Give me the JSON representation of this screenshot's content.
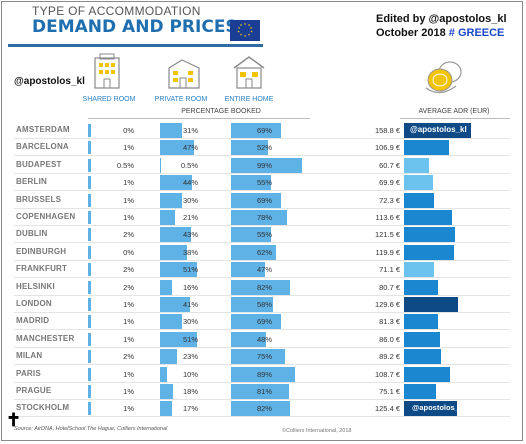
{
  "header": {
    "title_line1": "TYPE OF ACCOMMODATION",
    "title_line2": "DEMAND AND PRICES",
    "editor_line1": "Edited by  @apostolos_kl",
    "editor_line2_prefix": "October 2018 ",
    "editor_line2_country": "# GREECE",
    "handle": "@apostolos_kl"
  },
  "columns": {
    "shared_room": "SHARED ROOM",
    "private_room": "PRIVATE ROOM",
    "entire_home": "ENTIRE HOME",
    "percentage_booked": "PERCENTAGE BOOKED",
    "average_adr": "AVERAGE ADR (EUR)"
  },
  "overlays": {
    "top": "@apostolos_kl",
    "bottom": "@apostolos_kl"
  },
  "footer": {
    "source": "Source: AirDNA, HotelSchool The Hague, Colliers International",
    "copyright": "©Colliers International, 2018"
  },
  "colors": {
    "light_blue": "#5eb2e6",
    "adr_mid": "#1b87d0",
    "adr_dark": "#0d4a86",
    "adr_light": "#6cc4ee"
  },
  "chart_data": {
    "type": "table",
    "title": "DEMAND AND PRICES",
    "columns": [
      "SHARED ROOM",
      "PRIVATE ROOM",
      "ENTIRE HOME",
      "AVERAGE ADR (EUR)"
    ],
    "rows": [
      {
        "city": "AMSTERDAM",
        "shared": "0%",
        "shared_v": 0,
        "private": "31%",
        "private_v": 31,
        "home": "69%",
        "home_v": 69,
        "adr": "158.8 €",
        "adr_v": 158.8,
        "adr_tone": "dark"
      },
      {
        "city": "BARCELONA",
        "shared": "1%",
        "shared_v": 1,
        "private": "47%",
        "private_v": 47,
        "home": "52%",
        "home_v": 52,
        "adr": "106.9 €",
        "adr_v": 106.9,
        "adr_tone": "mid"
      },
      {
        "city": "BUDAPEST",
        "shared": "0.5%",
        "shared_v": 0.5,
        "private": "0.5%",
        "private_v": 0.5,
        "home": "99%",
        "home_v": 99,
        "adr": "60.7 €",
        "adr_v": 60.7,
        "adr_tone": "light"
      },
      {
        "city": "BERLIN",
        "shared": "1%",
        "shared_v": 1,
        "private": "44%",
        "private_v": 44,
        "home": "55%",
        "home_v": 55,
        "adr": "69.9 €",
        "adr_v": 69.9,
        "adr_tone": "light"
      },
      {
        "city": "BRUSSELS",
        "shared": "1%",
        "shared_v": 1,
        "private": "30%",
        "private_v": 30,
        "home": "69%",
        "home_v": 69,
        "adr": "72.3 €",
        "adr_v": 72.3,
        "adr_tone": "mid"
      },
      {
        "city": "COPENHAGEN",
        "shared": "1%",
        "shared_v": 1,
        "private": "21%",
        "private_v": 21,
        "home": "78%",
        "home_v": 78,
        "adr": "113.6 €",
        "adr_v": 113.6,
        "adr_tone": "mid"
      },
      {
        "city": "DUBLIN",
        "shared": "2%",
        "shared_v": 2,
        "private": "43%",
        "private_v": 43,
        "home": "55%",
        "home_v": 55,
        "adr": "121.5 €",
        "adr_v": 121.5,
        "adr_tone": "mid"
      },
      {
        "city": "EDINBURGH",
        "shared": "0%",
        "shared_v": 0,
        "private": "38%",
        "private_v": 38,
        "home": "62%",
        "home_v": 62,
        "adr": "119.9 €",
        "adr_v": 119.9,
        "adr_tone": "mid"
      },
      {
        "city": "FRANKFURT",
        "shared": "2%",
        "shared_v": 2,
        "private": "51%",
        "private_v": 51,
        "home": "47%",
        "home_v": 47,
        "adr": "71.1 €",
        "adr_v": 71.1,
        "adr_tone": "light"
      },
      {
        "city": "HELSINKI",
        "shared": "2%",
        "shared_v": 2,
        "private": "16%",
        "private_v": 16,
        "home": "82%",
        "home_v": 82,
        "adr": "80.7 €",
        "adr_v": 80.7,
        "adr_tone": "mid"
      },
      {
        "city": "LONDON",
        "shared": "1%",
        "shared_v": 1,
        "private": "41%",
        "private_v": 41,
        "home": "58%",
        "home_v": 58,
        "adr": "129.6 €",
        "adr_v": 129.6,
        "adr_tone": "dark"
      },
      {
        "city": "MADRID",
        "shared": "1%",
        "shared_v": 1,
        "private": "30%",
        "private_v": 30,
        "home": "69%",
        "home_v": 69,
        "adr": "81.3 €",
        "adr_v": 81.3,
        "adr_tone": "mid"
      },
      {
        "city": "MANCHESTER",
        "shared": "1%",
        "shared_v": 1,
        "private": "51%",
        "private_v": 51,
        "home": "48%",
        "home_v": 48,
        "adr": "86.0 €",
        "adr_v": 86.0,
        "adr_tone": "mid"
      },
      {
        "city": "MILAN",
        "shared": "2%",
        "shared_v": 2,
        "private": "23%",
        "private_v": 23,
        "home": "75%",
        "home_v": 75,
        "adr": "89.2 €",
        "adr_v": 89.2,
        "adr_tone": "mid"
      },
      {
        "city": "PARIS",
        "shared": "1%",
        "shared_v": 1,
        "private": "10%",
        "private_v": 10,
        "home": "89%",
        "home_v": 89,
        "adr": "108.7 €",
        "adr_v": 108.7,
        "adr_tone": "mid"
      },
      {
        "city": "PRAGUE",
        "shared": "1%",
        "shared_v": 1,
        "private": "18%",
        "private_v": 18,
        "home": "81%",
        "home_v": 81,
        "adr": "75.1 €",
        "adr_v": 75.1,
        "adr_tone": "mid"
      },
      {
        "city": "STOCKHOLM",
        "shared": "1%",
        "shared_v": 1,
        "private": "17%",
        "private_v": 17,
        "home": "82%",
        "home_v": 82,
        "adr": "125.4 €",
        "adr_v": 125.4,
        "adr_tone": "dark"
      }
    ]
  }
}
